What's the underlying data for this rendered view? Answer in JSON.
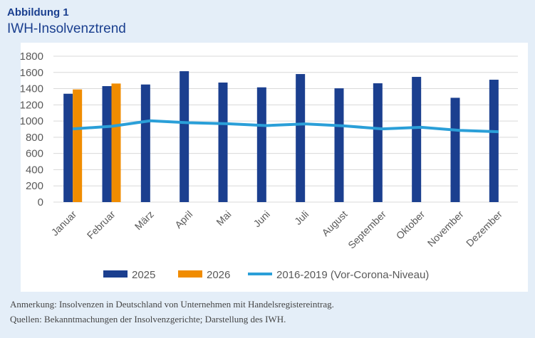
{
  "header": {
    "label": "Abbildung 1",
    "title": "IWH-Insolvenztrend"
  },
  "chart_data": {
    "type": "bar",
    "categories": [
      "Januar",
      "Februar",
      "März",
      "April",
      "Mai",
      "Juni",
      "Juli",
      "August",
      "September",
      "Oktober",
      "November",
      "Dezember"
    ],
    "series": [
      {
        "name": "2025",
        "type": "bar",
        "color": "#1b3f8f",
        "values": [
          1337,
          1431,
          1451,
          1615,
          1475,
          1416,
          1580,
          1404,
          1466,
          1545,
          1287,
          1510
        ]
      },
      {
        "name": "2026",
        "type": "bar",
        "color": "#f08c00",
        "values": [
          1390,
          1463,
          null,
          null,
          null,
          null,
          null,
          null,
          null,
          null,
          null,
          null
        ]
      },
      {
        "name": "2016-2019 (Vor-Corona-Niveau)",
        "type": "line",
        "color": "#2a9fd8",
        "values": [
          903,
          935,
          1003,
          979,
          967,
          944,
          965,
          941,
          903,
          923,
          885,
          868
        ]
      }
    ],
    "yticks": [
      "0",
      "200",
      "400",
      "600",
      "800",
      "1000",
      "1200",
      "1400",
      "1600",
      "1800"
    ],
    "ylim": [
      0,
      1800
    ],
    "grid": true,
    "legend": "bottom"
  },
  "notes": {
    "remark": "Anmerkung: Insolvenzen in Deutschland von Unternehmen mit Handelsregistereintrag.",
    "sources": "Quellen: Bekanntmachungen der Insolvenzgerichte; Darstellung des IWH."
  }
}
